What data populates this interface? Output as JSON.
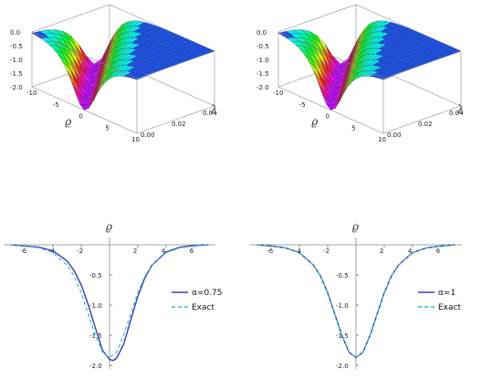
{
  "colors": {
    "surface_flat": "#1d52e6",
    "solid_line": "#3a3ab8",
    "dashed_line": "#2fc2c2",
    "axis": "#888888"
  },
  "chart_data": [
    {
      "type": "surface",
      "x_label": "ϱ",
      "y_label": "λ",
      "x_ticks": [
        "-10",
        "-5",
        "0",
        "5",
        "10"
      ],
      "y_ticks": [
        "0.00",
        "0.02",
        "0.04"
      ],
      "z_ticks": [
        "0.0",
        "-0.5",
        "-1.0",
        "-1.5",
        "-2.0"
      ],
      "xlim": [
        -10,
        10
      ],
      "ylim": [
        0,
        0.05
      ],
      "zlim": [
        -2,
        0
      ]
    },
    {
      "type": "surface",
      "x_label": "ϱ",
      "y_label": "λ",
      "x_ticks": [
        "-10",
        "-5",
        "0",
        "5",
        "10"
      ],
      "y_ticks": [
        "0.00",
        "0.02",
        "0.04"
      ],
      "z_ticks": [
        "0.0",
        "-0.5",
        "-1.0",
        "-1.5",
        "-2.0"
      ],
      "xlim": [
        -10,
        10
      ],
      "ylim": [
        0,
        0.05
      ],
      "zlim": [
        -2,
        0
      ]
    },
    {
      "type": "line",
      "x_label": "ϱ",
      "x_ticks": [
        "-6",
        "-4",
        "-2",
        "2",
        "4",
        "6"
      ],
      "y_ticks": [
        "-0.5",
        "-1.0",
        "-1.5",
        "-2.0"
      ],
      "xlim": [
        -7.5,
        7.5
      ],
      "ylim": [
        -2,
        0
      ],
      "legend_position": "right",
      "series": [
        {
          "name": "α=0.75",
          "style": "solid",
          "x": [
            -7,
            -6,
            -5,
            -4,
            -3,
            -2.5,
            -2,
            -1.5,
            -1,
            -0.5,
            0,
            0.25,
            0.5,
            1,
            1.5,
            2,
            2.5,
            3,
            4,
            5,
            6,
            7
          ],
          "y": [
            0,
            -0.02,
            -0.04,
            -0.1,
            -0.27,
            -0.43,
            -0.67,
            -1.0,
            -1.38,
            -1.75,
            -1.9,
            -1.92,
            -1.88,
            -1.65,
            -1.25,
            -0.86,
            -0.55,
            -0.34,
            -0.12,
            -0.04,
            -0.01,
            0
          ]
        },
        {
          "name": "Exact",
          "style": "dashed",
          "x": [
            -7,
            -6,
            -5,
            -4,
            -3,
            -2.5,
            -2,
            -1.5,
            -1,
            -0.5,
            0,
            0.5,
            1,
            1.5,
            2,
            2.5,
            3,
            4,
            5,
            6,
            7
          ],
          "y": [
            0,
            -0.02,
            -0.05,
            -0.13,
            -0.34,
            -0.52,
            -0.8,
            -1.15,
            -1.5,
            -1.78,
            -1.87,
            -1.78,
            -1.5,
            -1.15,
            -0.8,
            -0.52,
            -0.34,
            -0.13,
            -0.05,
            -0.02,
            0
          ]
        }
      ]
    },
    {
      "type": "line",
      "x_label": "ϱ",
      "x_ticks": [
        "-6",
        "-4",
        "-2",
        "2",
        "4",
        "6"
      ],
      "y_ticks": [
        "-0.5",
        "-1.0",
        "-1.5",
        "-2.0"
      ],
      "xlim": [
        -7.5,
        7.5
      ],
      "ylim": [
        -2,
        0
      ],
      "legend_position": "right",
      "series": [
        {
          "name": "α=1",
          "style": "solid",
          "x": [
            -7,
            -6,
            -5,
            -4,
            -3,
            -2.5,
            -2,
            -1.5,
            -1,
            -0.5,
            0,
            0.5,
            1,
            1.5,
            2,
            2.5,
            3,
            4,
            5,
            6,
            7
          ],
          "y": [
            0,
            -0.02,
            -0.05,
            -0.13,
            -0.34,
            -0.52,
            -0.8,
            -1.15,
            -1.5,
            -1.78,
            -1.87,
            -1.78,
            -1.5,
            -1.15,
            -0.8,
            -0.52,
            -0.34,
            -0.13,
            -0.05,
            -0.02,
            0
          ]
        },
        {
          "name": "Exact",
          "style": "dashed",
          "x": [
            -7,
            -6,
            -5,
            -4,
            -3,
            -2.5,
            -2,
            -1.5,
            -1,
            -0.5,
            0,
            0.5,
            1,
            1.5,
            2,
            2.5,
            3,
            4,
            5,
            6,
            7
          ],
          "y": [
            0,
            -0.02,
            -0.05,
            -0.13,
            -0.34,
            -0.52,
            -0.8,
            -1.15,
            -1.5,
            -1.78,
            -1.87,
            -1.78,
            -1.5,
            -1.15,
            -0.8,
            -0.52,
            -0.34,
            -0.13,
            -0.05,
            -0.02,
            0
          ]
        }
      ]
    }
  ]
}
